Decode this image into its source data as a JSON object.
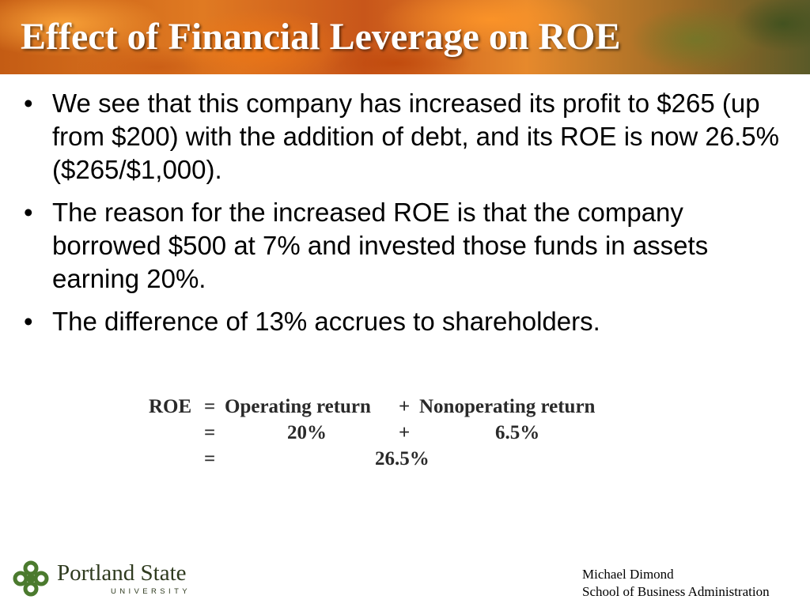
{
  "slide": {
    "title": "Effect of Financial Leverage on ROE",
    "bullet_glyph": "•",
    "bullets": [
      "We see that this company has increased its profit to $265 (up from $200) with the addition of debt, and its ROE is now 26.5% ($265/$1,000).",
      "The reason for the increased ROE is that the company borrowed $500 at 7% and invested those funds in assets earning 20%.",
      "The difference of 13% accrues to shareholders."
    ],
    "formula": {
      "row1": {
        "lhs": "ROE",
        "eq": "=",
        "term1": "Operating return",
        "plus": "+",
        "term2": "Nonoperating return"
      },
      "row2": {
        "eq": "=",
        "term1": "20%",
        "plus": "+",
        "term2": "6.5%"
      },
      "row3": {
        "eq": "=",
        "result": "26.5%"
      }
    }
  },
  "footer": {
    "logo_name": "Portland State",
    "logo_sub": "UNIVERSITY",
    "logo_color": "#4b7a2e",
    "author": "Michael Dimond",
    "department": "School of Business Administration"
  }
}
